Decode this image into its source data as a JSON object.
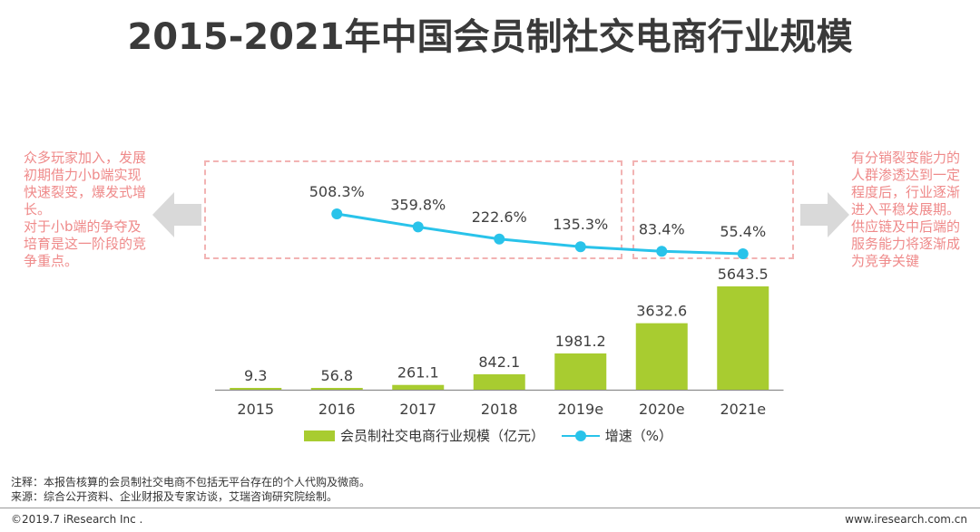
{
  "title": "2015-2021年中国会员制社交电商行业规模",
  "left_note": [
    "众多玩家加入，发展初期借力小b端实现快速裂变，爆发式增长。",
    "对于小b端的争夺及培育是这一阶段的竞争重点。"
  ],
  "right_note": [
    "有分销裂变能力的人群渗透达到一定程度后，行业逐渐进入平稳发展期。",
    "供应链及中后端的服务能力将逐渐成为竞争关键"
  ],
  "chart_data": {
    "type": "bar+line",
    "categories": [
      "2015",
      "2016",
      "2017",
      "2018",
      "2019e",
      "2020e",
      "2021e"
    ],
    "series": [
      {
        "name": "会员制社交电商行业规模（亿元）",
        "type": "bar",
        "color": "#a8cc30",
        "values": [
          9.3,
          56.8,
          261.1,
          842.1,
          1981.2,
          3632.6,
          5643.5
        ],
        "labels": [
          "9.3",
          "56.8",
          "261.1",
          "842.1",
          "1981.2",
          "3632.6",
          "5643.5"
        ]
      },
      {
        "name": "增速（%）",
        "type": "line",
        "color": "#29c3ea",
        "values": [
          null,
          508.3,
          359.8,
          222.6,
          135.3,
          83.4,
          55.4
        ],
        "labels": [
          "",
          "508.3%",
          "359.8%",
          "222.6%",
          "135.3%",
          "83.4%",
          "55.4%"
        ]
      }
    ],
    "title": "2015-2021年中国会员制社交电商行业规模",
    "bar_ylim": [
      0,
      5643.5
    ],
    "line_ylim": [
      55.4,
      508.3
    ],
    "grid": false,
    "legend": "bottom"
  },
  "legend": {
    "bar_label": "会员制社交电商行业规模（亿元）",
    "line_label": "增速（%）"
  },
  "footnotes": {
    "note": "注释：本报告核算的会员制社交电商不包括无平台存在的个人代购及微商。",
    "source": "来源：综合公开资料、企业财报及专家访谈，艾瑞咨询研究院绘制。"
  },
  "footer": {
    "copyright": "©2019.7 iResearch Inc .",
    "website": "www.iresearch.com.cn"
  },
  "colors": {
    "accent_pink": "#ef8a8a",
    "dash_border": "#f2b3b3",
    "arrow_gray": "#d9d9d9"
  }
}
